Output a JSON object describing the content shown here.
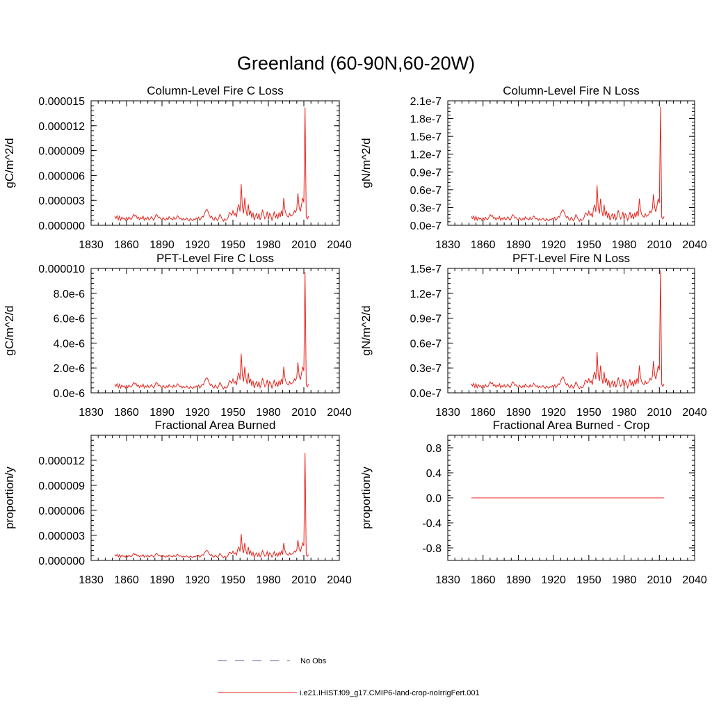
{
  "figure": {
    "title": "Greenland (60-90N,60-20W)"
  },
  "colors": {
    "model_line": "#e8231b",
    "obs_line": "#5b5ba8"
  },
  "legend": {
    "obs_label": "No Obs",
    "model_label": "i.e21.IHIST.f09_g17.CMIP6-land-crop-noIrrigFert.001",
    "placement": "bottom-center"
  },
  "chart_data": [
    {
      "id": "p1",
      "type": "line",
      "title": "Column-Level Fire C Loss",
      "ylabel": "gC/m^2/d",
      "xlabel": "",
      "xlim": [
        1830,
        2040
      ],
      "ylim": [
        0,
        1.5e-05
      ],
      "xticks": [
        1830,
        1860,
        1890,
        1920,
        1950,
        1980,
        2010,
        2040
      ],
      "xtick_labels": [
        "1830",
        "1860",
        "1890",
        "1920",
        "1950",
        "1980",
        "2010",
        "2040"
      ],
      "yticks": [
        0,
        3e-06,
        6e-06,
        9e-06,
        1.2e-05,
        1.5e-05
      ],
      "ytick_labels": [
        "0.000000",
        "0.000003",
        "0.000006",
        "0.000009",
        "0.000012",
        "0.000015"
      ],
      "series": [
        {
          "x_start": 1850,
          "x_end": 2014,
          "peak": 1.42e-05,
          "base": 1.1e-06
        }
      ]
    },
    {
      "id": "p2",
      "type": "line",
      "title": "Column-Level Fire N Loss",
      "ylabel": "gN/m^2/d",
      "xlabel": "",
      "xlim": [
        1830,
        2040
      ],
      "ylim": [
        0,
        2.1e-07
      ],
      "xticks": [
        1830,
        1860,
        1890,
        1920,
        1950,
        1980,
        2010,
        2040
      ],
      "xtick_labels": [
        "1830",
        "1860",
        "1890",
        "1920",
        "1950",
        "1980",
        "2010",
        "2040"
      ],
      "yticks": [
        0,
        3e-08,
        6e-08,
        9e-08,
        1.2e-07,
        1.5e-07,
        1.8e-07,
        2.1e-07
      ],
      "ytick_labels": [
        "0.0e-7",
        "0.3e-7",
        "0.6e-7",
        "0.9e-7",
        "1.2e-7",
        "1.5e-7",
        "1.8e-7",
        "2.1e-7"
      ],
      "series": [
        {
          "x_start": 1850,
          "x_end": 2014,
          "peak": 2e-07,
          "base": 1.5e-08
        }
      ]
    },
    {
      "id": "p3",
      "type": "line",
      "title": "PFT-Level Fire C Loss",
      "ylabel": "gC/m^2/d",
      "xlabel": "",
      "xlim": [
        1830,
        2040
      ],
      "ylim": [
        0,
        1e-05
      ],
      "xticks": [
        1830,
        1860,
        1890,
        1920,
        1950,
        1980,
        2010,
        2040
      ],
      "xtick_labels": [
        "1830",
        "1860",
        "1890",
        "1920",
        "1950",
        "1980",
        "2010",
        "2040"
      ],
      "yticks": [
        0,
        2e-06,
        4e-06,
        6e-06,
        8e-06,
        1e-05
      ],
      "ytick_labels": [
        "0.0e-6",
        "2.0e-6",
        "4.0e-6",
        "6.0e-6",
        "8.0e-6",
        "0.000010"
      ],
      "series": [
        {
          "x_start": 1850,
          "x_end": 2014,
          "peak": 9.7e-06,
          "base": 7e-07
        }
      ]
    },
    {
      "id": "p4",
      "type": "line",
      "title": "PFT-Level Fire N Loss",
      "ylabel": "gN/m^2/d",
      "xlabel": "",
      "xlim": [
        1830,
        2040
      ],
      "ylim": [
        0,
        1.5e-07
      ],
      "xticks": [
        1830,
        1860,
        1890,
        1920,
        1950,
        1980,
        2010,
        2040
      ],
      "xtick_labels": [
        "1830",
        "1860",
        "1890",
        "1920",
        "1950",
        "1980",
        "2010",
        "2040"
      ],
      "yticks": [
        0,
        3e-08,
        6e-08,
        9e-08,
        1.2e-07,
        1.5e-07
      ],
      "ytick_labels": [
        "0.0e-7",
        "0.3e-7",
        "0.6e-7",
        "0.9e-7",
        "1.2e-7",
        "1.5e-7"
      ],
      "series": [
        {
          "x_start": 1850,
          "x_end": 2014,
          "peak": 1.48e-07,
          "base": 1.1e-08
        }
      ]
    },
    {
      "id": "p5",
      "type": "line",
      "title": "Fractional Area Burned",
      "ylabel": "proportion/y",
      "xlabel": "",
      "xlim": [
        1830,
        2040
      ],
      "ylim": [
        0,
        1.5e-05
      ],
      "xticks": [
        1830,
        1860,
        1890,
        1920,
        1950,
        1980,
        2010,
        2040
      ],
      "xtick_labels": [
        "1830",
        "1860",
        "1890",
        "1920",
        "1950",
        "1980",
        "2010",
        "2040"
      ],
      "yticks": [
        0,
        3e-06,
        6e-06,
        9e-06,
        1.2e-05
      ],
      "ytick_labels": [
        "0.000000",
        "0.000003",
        "0.000006",
        "0.000009",
        "0.000012"
      ],
      "series": [
        {
          "x_start": 1850,
          "x_end": 2014,
          "peak": 1.29e-05,
          "base": 7e-07
        }
      ]
    },
    {
      "id": "p6",
      "type": "line",
      "title": "Fractional Area Burned - Crop",
      "ylabel": "proportion/y",
      "xlabel": "",
      "xlim": [
        1830,
        2040
      ],
      "ylim": [
        -1,
        1
      ],
      "xticks": [
        1830,
        1860,
        1890,
        1920,
        1950,
        1980,
        2010,
        2040
      ],
      "xtick_labels": [
        "1830",
        "1860",
        "1890",
        "1920",
        "1950",
        "1980",
        "2010",
        "2040"
      ],
      "yticks": [
        -0.8,
        -0.4,
        0,
        0.4,
        0.8
      ],
      "ytick_labels": [
        "-0.8",
        "-0.4",
        "0.0",
        "0.4",
        "0.8"
      ],
      "series": [
        {
          "x_start": 1850,
          "x_end": 2014,
          "constant": 0
        }
      ]
    }
  ]
}
